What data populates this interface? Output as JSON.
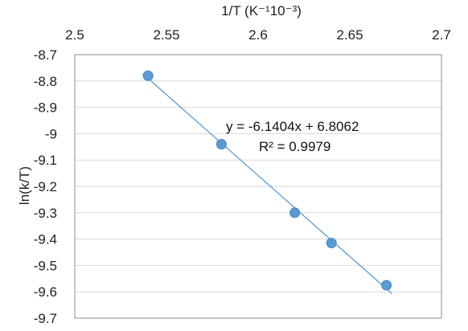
{
  "chart_data": {
    "type": "scatter",
    "xlabel": "1/T (K⁻¹10⁻³)",
    "ylabel": "ln(k/T)",
    "xlim": [
      2.5,
      2.7
    ],
    "ylim": [
      -9.7,
      -8.7
    ],
    "x_ticks": [
      2.5,
      2.55,
      2.6,
      2.65,
      2.7
    ],
    "y_ticks": [
      -8.7,
      -8.8,
      -8.9,
      -9,
      -9.1,
      -9.2,
      -9.3,
      -9.4,
      -9.5,
      -9.6,
      -9.7
    ],
    "x_tick_labels": [
      "2.5",
      "2.55",
      "2.6",
      "2.65",
      "2.7"
    ],
    "y_tick_labels": [
      "-8.7",
      "-8.8",
      "-8.9",
      "-9",
      "-9.1",
      "-9.2",
      "-9.3",
      "-9.4",
      "-9.5",
      "-9.6",
      "-9.7"
    ],
    "x_axis_position": "top",
    "grid": true,
    "series": [
      {
        "x": [
          2.54,
          2.58,
          2.62,
          2.64,
          2.67
        ],
        "y": [
          -8.78,
          -9.04,
          -9.3,
          -9.415,
          -9.575
        ],
        "color": "#5b9bd5"
      }
    ],
    "trendline": {
      "slope": -6.1404,
      "intercept": 6.8062,
      "x_range": [
        2.537,
        2.673
      ],
      "color": "#5b9bd5"
    },
    "annotations": {
      "equation": "y = -6.1404x + 6.8062",
      "r_squared": "R² = 0.9979"
    }
  }
}
